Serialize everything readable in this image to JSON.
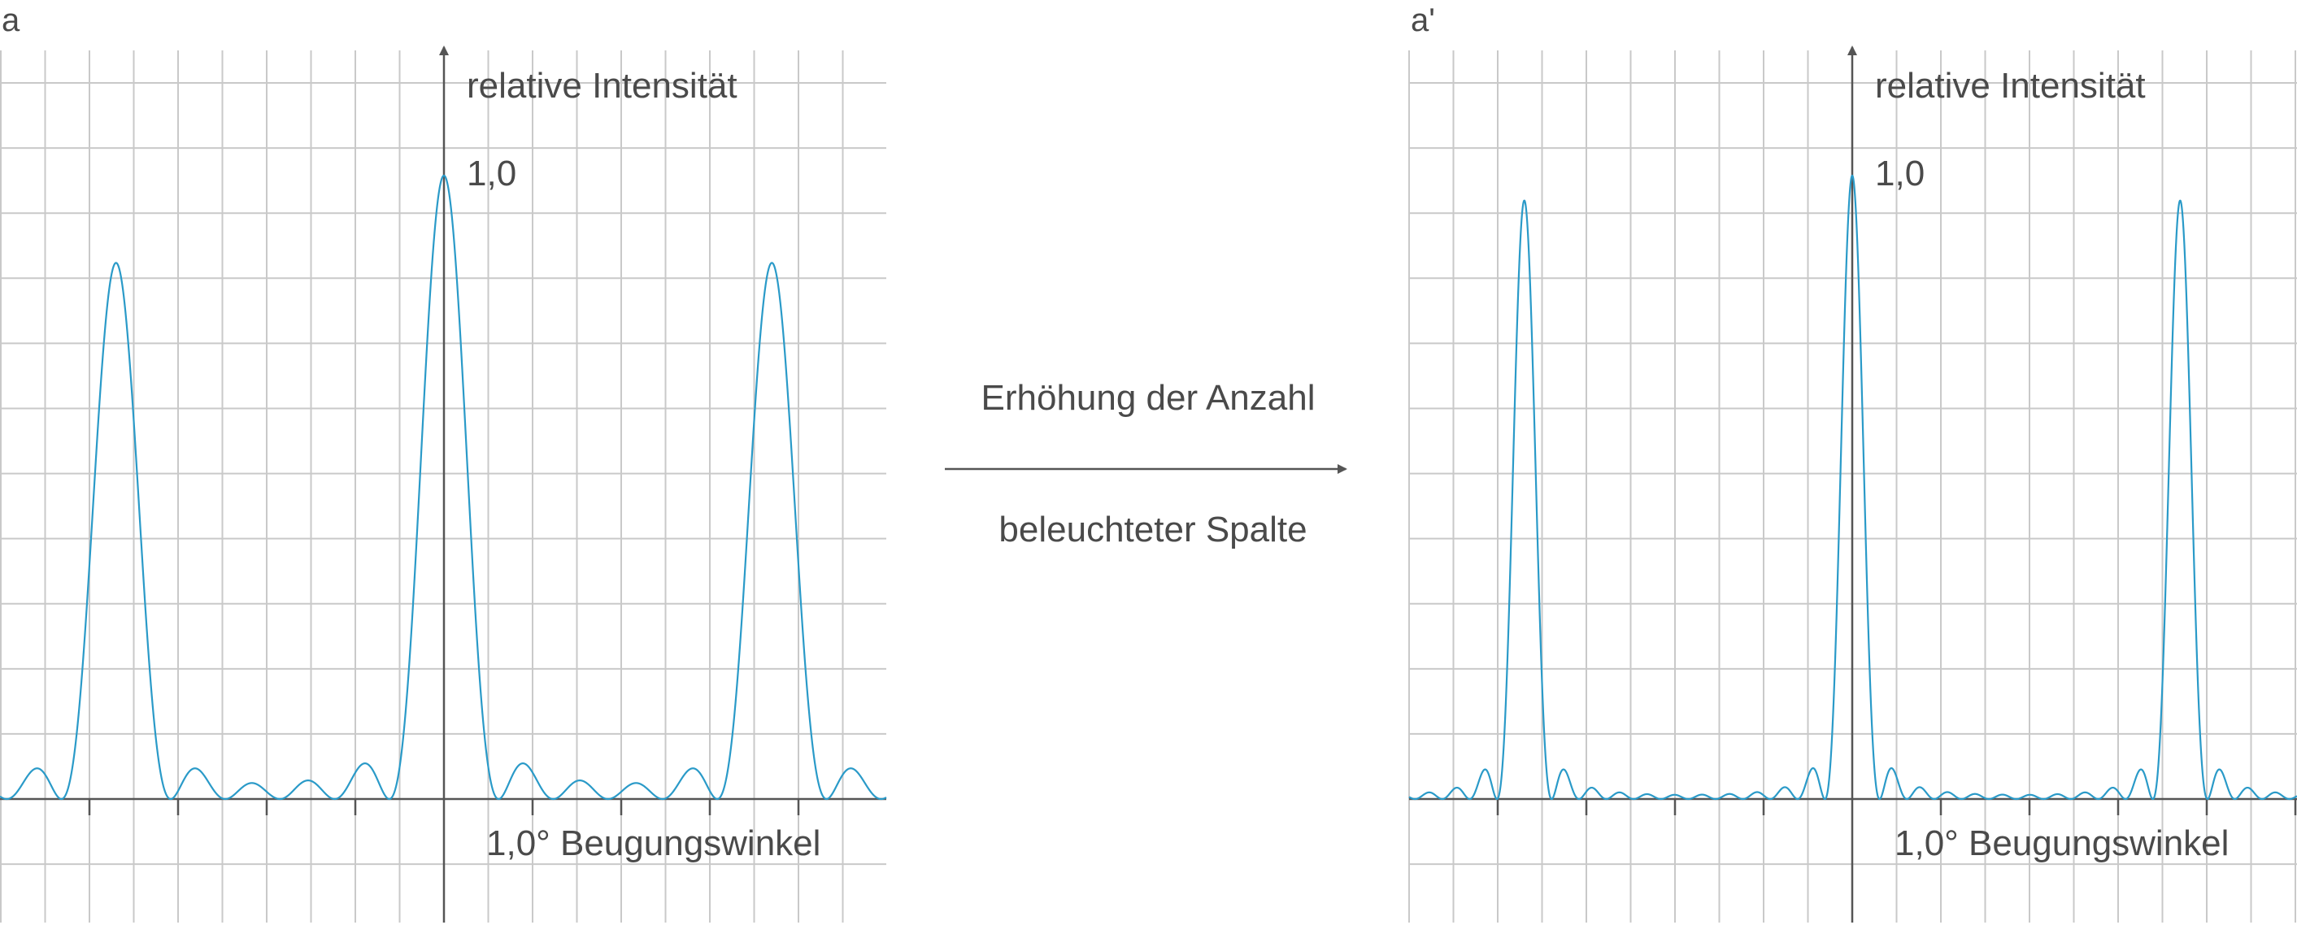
{
  "accent_color": "#2a9ac8",
  "axis_color": "#555555",
  "grid_color": "#c9c9c9",
  "transition": {
    "line1": "Erhöhung der Anzahl",
    "line2": "beleuchteter Spalte"
  },
  "chart_data": [
    {
      "type": "line",
      "panel_label": "a",
      "ylabel": "relative Intensität",
      "xlabel": "1,0° Beugungswinkel",
      "y_tick_label": "1,0",
      "x_unit_deg": 1.0,
      "ylim": [
        0,
        1.0
      ],
      "grid": true,
      "slit_count": 6,
      "principal_maxima_positions_deg": [
        -3.7,
        0,
        3.7
      ],
      "principal_maxima_values": [
        0.86,
        1.0,
        0.86
      ],
      "series": [
        {
          "values": [
            0.86,
            1.0,
            0.86
          ]
        }
      ]
    },
    {
      "type": "line",
      "panel_label": "a'",
      "ylabel": "relative Intensität",
      "xlabel": "1,0° Beugungswinkel",
      "y_tick_label": "1,0",
      "x_unit_deg": 1.0,
      "ylim": [
        0,
        1.0
      ],
      "grid": true,
      "slit_count": 12,
      "principal_maxima_positions_deg": [
        -3.7,
        0,
        3.7
      ],
      "principal_maxima_values": [
        0.96,
        1.0,
        0.96
      ],
      "series": [
        {
          "values": [
            0.96,
            1.0,
            0.96
          ]
        }
      ]
    }
  ]
}
